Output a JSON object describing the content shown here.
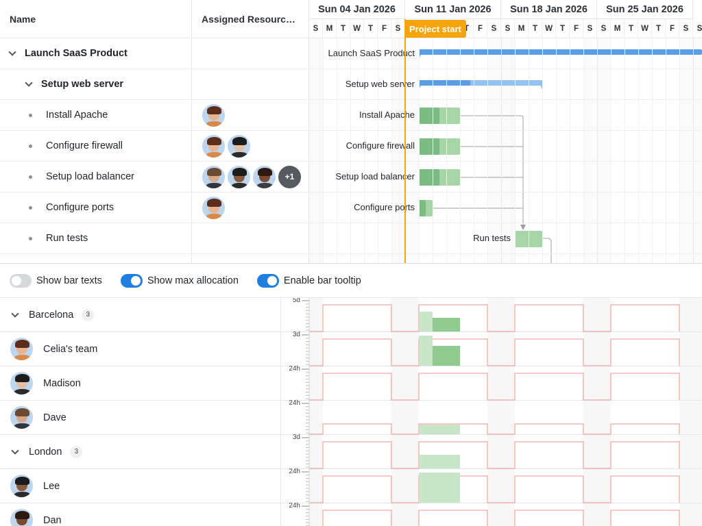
{
  "gantt": {
    "columns": {
      "name": "Name",
      "resources": "Assigned Resourc…"
    },
    "weeks": [
      "Sun 04 Jan 2026",
      "Sun 11 Jan 2026",
      "Sun 18 Jan 2026",
      "Sun 25 Jan 2026"
    ],
    "day_letters": [
      "S",
      "M",
      "T",
      "W",
      "T",
      "F",
      "S",
      "S",
      "M",
      "T",
      "W",
      "T",
      "F",
      "S",
      "S",
      "M",
      "T",
      "W",
      "T",
      "F",
      "S",
      "S",
      "M",
      "T",
      "W",
      "T",
      "F",
      "S",
      "S"
    ],
    "project_start_label": "Project start",
    "tasks": [
      {
        "name": "Launch SaaS Product",
        "level": 0,
        "expanded": true,
        "avatars": []
      },
      {
        "name": "Setup web server",
        "level": 1,
        "expanded": true,
        "avatars": []
      },
      {
        "name": "Install Apache",
        "level": 2,
        "avatars": [
          "celia"
        ]
      },
      {
        "name": "Configure firewall",
        "level": 2,
        "avatars": [
          "celia",
          "madison"
        ]
      },
      {
        "name": "Setup load balancer",
        "level": 2,
        "avatars": [
          "dave",
          "lee",
          "dan"
        ],
        "more": "+1"
      },
      {
        "name": "Configure ports",
        "level": 2,
        "avatars": [
          "celia"
        ]
      },
      {
        "name": "Run tests",
        "level": 2,
        "avatars": []
      }
    ]
  },
  "toolbar": {
    "show_bar_texts": {
      "label": "Show bar texts",
      "on": false
    },
    "show_max_allocation": {
      "label": "Show max allocation",
      "on": true
    },
    "enable_bar_tooltip": {
      "label": "Enable bar tooltip",
      "on": true
    }
  },
  "histogram": {
    "rows": [
      {
        "type": "group",
        "name": "Barcelona",
        "count": "3",
        "ylabel": "5d"
      },
      {
        "type": "resource",
        "name": "Celia's team",
        "avatar": "celia",
        "ylabel": "3d"
      },
      {
        "type": "resource",
        "name": "Madison",
        "avatar": "madison",
        "ylabel": "24h"
      },
      {
        "type": "resource",
        "name": "Dave",
        "avatar": "dave",
        "ylabel": "24h"
      },
      {
        "type": "group",
        "name": "London",
        "count": "3",
        "ylabel": "3d"
      },
      {
        "type": "resource",
        "name": "Lee",
        "avatar": "lee",
        "ylabel": "24h"
      },
      {
        "type": "resource",
        "name": "Dan",
        "avatar": "dan",
        "ylabel": "24h"
      }
    ]
  },
  "colors": {
    "accent": "#1f7fe0",
    "project_start": "#f5a50b",
    "parent_bar": "#5c9ee6",
    "task_bar_done": "#7dbb84",
    "task_bar_todo": "#a8d5a8",
    "max_allocation_line": "#f2a3a3"
  },
  "avatar_styles": {
    "celia": {
      "bg": "#bcd6ef",
      "hair": "#5a2e1a",
      "skin": "#e8b48f",
      "shirt": "#d98a4a"
    },
    "madison": {
      "bg": "#bcd6ef",
      "hair": "#1c1c1c",
      "skin": "#e5bfa3",
      "shirt": "#2b2b2b"
    },
    "dave": {
      "bg": "#bcd6ef",
      "hair": "#6b4a34",
      "skin": "#d8a988",
      "shirt": "#2f3640"
    },
    "lee": {
      "bg": "#bcd6ef",
      "hair": "#1c1c1c",
      "skin": "#8a5a3c",
      "shirt": "#2b2b2b"
    },
    "dan": {
      "bg": "#bcd6ef",
      "hair": "#2a1a12",
      "skin": "#7a4a30",
      "shirt": "#3a3f44"
    }
  }
}
